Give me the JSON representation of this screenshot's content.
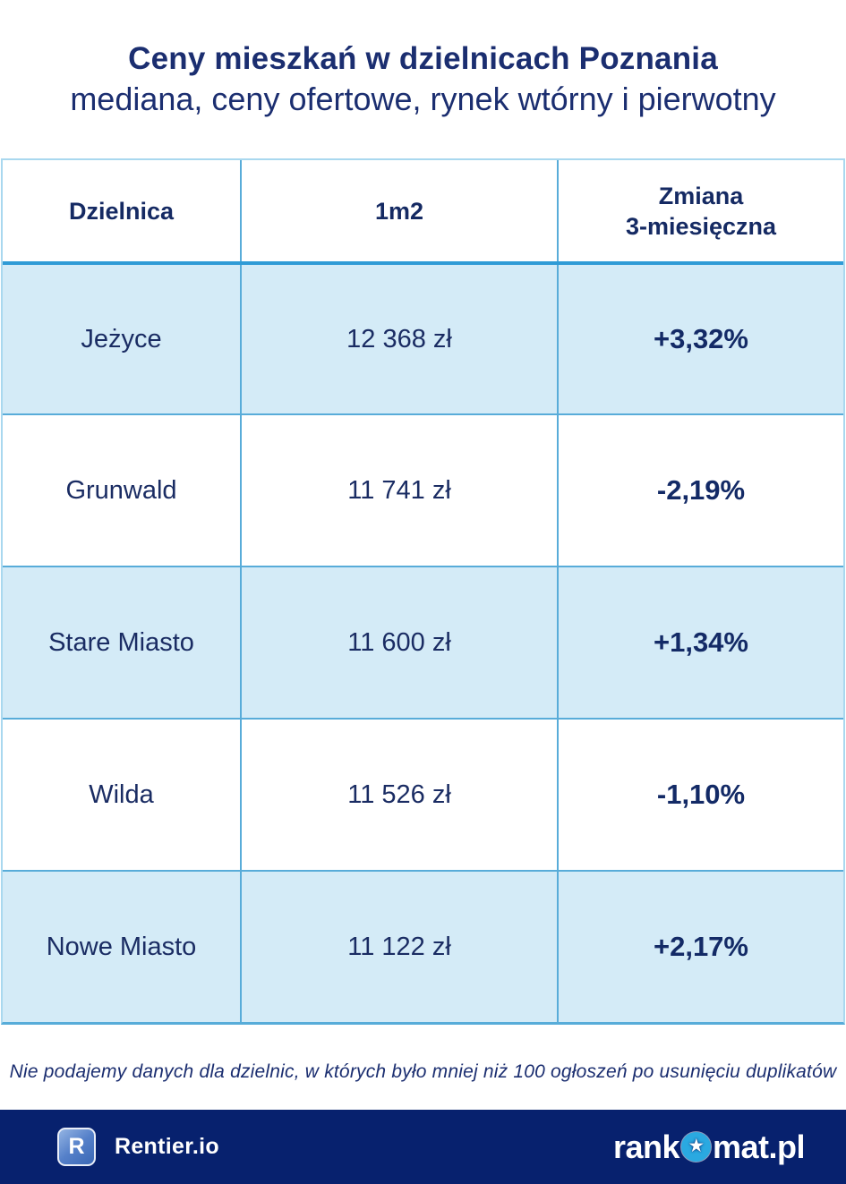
{
  "header": {
    "title": "Ceny mieszkań w dzielnicach Poznania",
    "subtitle": "mediana, ceny ofertowe, rynek wtórny i pierwotny"
  },
  "table": {
    "columns": {
      "district": "Dzielnica",
      "price": "1m2",
      "change_line1": "Zmiana",
      "change_line2": "3-miesięczna"
    },
    "rows": [
      {
        "district": "Jeżyce",
        "price": "12 368 zł",
        "change": "+3,32%"
      },
      {
        "district": "Grunwald",
        "price": "11 741 zł",
        "change": "-2,19%"
      },
      {
        "district": "Stare Miasto",
        "price": "11 600 zł",
        "change": "+1,34%"
      },
      {
        "district": "Wilda",
        "price": "11 526 zł",
        "change": "-1,10%"
      },
      {
        "district": "Nowe Miasto",
        "price": "11 122 zł",
        "change": "+2,17%"
      }
    ]
  },
  "footnote": "Nie podajemy danych dla dzielnic, w których było mniej niż 100 ogłoszeń po usunięciu duplikatów",
  "footer": {
    "rentier": {
      "badge_letter": "R",
      "label": "Rentier.io"
    },
    "rankomat": {
      "prefix": "rank",
      "suffix": "mat.pl",
      "star_icon": "star",
      "star_glyph": "★"
    }
  },
  "colors": {
    "navy_text": "#1b2e70",
    "cell_text_navy": "#1a2c63",
    "bar_navy": "#07216e",
    "row_light_blue": "#d4ebf7",
    "divider_blue": "#58acd9",
    "header_separator_blue": "#2f9bd6",
    "table_outer_border": "#a9d8ef",
    "star_circle_blue": "#2aa9e1",
    "rentier_badge_blue": "#4a77c4"
  },
  "chart_data": {
    "type": "table",
    "title": "Ceny mieszkań w dzielnicach Poznania",
    "subtitle": "mediana, ceny ofertowe, rynek wtórny i pierwotny",
    "columns": [
      "Dzielnica",
      "1m2",
      "Zmiana 3-miesięczna"
    ],
    "rows": [
      [
        "Jeżyce",
        "12 368 zł",
        "+3,32%"
      ],
      [
        "Grunwald",
        "11 741 zł",
        "-2,19%"
      ],
      [
        "Stare Miasto",
        "11 600 zł",
        "+1,34%"
      ],
      [
        "Wilda",
        "11 526 zł",
        "-1,10%"
      ],
      [
        "Nowe Miasto",
        "11 122 zł",
        "+2,17%"
      ]
    ],
    "price_zl_per_m2": [
      12368,
      11741,
      11600,
      11526,
      11122
    ],
    "change_3m_percent": [
      3.32,
      -2.19,
      1.34,
      -1.1,
      2.17
    ],
    "footnote": "Nie podajemy danych dla dzielnic, w których było mniej niż 100 ogłoszeń po usunięciu duplikatów"
  }
}
